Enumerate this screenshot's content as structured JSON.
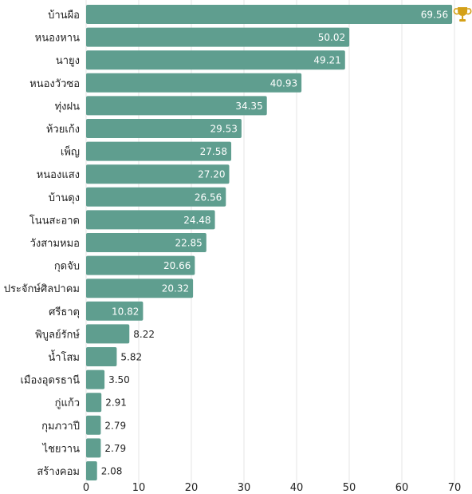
{
  "chart_data": {
    "type": "bar",
    "orientation": "horizontal",
    "categories": [
      "บ้านผือ",
      "หนองหาน",
      "นายูง",
      "หนองวัวซอ",
      "ทุ่งฝน",
      "ห้วยเก้ง",
      "เพ็ญ",
      "หนองแสง",
      "บ้านดุง",
      "โนนสะอาด",
      "วังสามหมอ",
      "กุดจับ",
      "ประจักษ์ศิลปาคม",
      "ศรีธาตุ",
      "พิบูลย์รักษ์",
      "น้ำโสม",
      "เมืองอุดรธานี",
      "กู่แก้ว",
      "กุมภวาปี",
      "ไชยวาน",
      "สร้างคอม"
    ],
    "values": [
      69.56,
      50.02,
      49.21,
      40.93,
      34.35,
      29.53,
      27.58,
      27.2,
      26.56,
      24.48,
      22.85,
      20.66,
      20.32,
      10.82,
      8.22,
      5.82,
      3.5,
      2.91,
      2.79,
      2.79,
      2.08
    ],
    "value_labels": [
      "69.56",
      "50.02",
      "49.21",
      "40.93",
      "34.35",
      "29.53",
      "27.58",
      "27.20",
      "26.56",
      "24.48",
      "22.85",
      "20.66",
      "20.32",
      "10.82",
      "8.22",
      "5.82",
      "3.50",
      "2.91",
      "2.79",
      "2.79",
      "2.08"
    ],
    "xlim": [
      0,
      70
    ],
    "xticks": [
      0,
      10,
      20,
      30,
      40,
      50,
      60,
      70
    ],
    "xtick_labels": [
      "0",
      "10",
      "20",
      "30",
      "40",
      "50",
      "60",
      "70"
    ],
    "grid": true,
    "bar_color": "#5f9e8f",
    "top_marker": "trophy-icon",
    "trophy_color": "#d4a017"
  }
}
